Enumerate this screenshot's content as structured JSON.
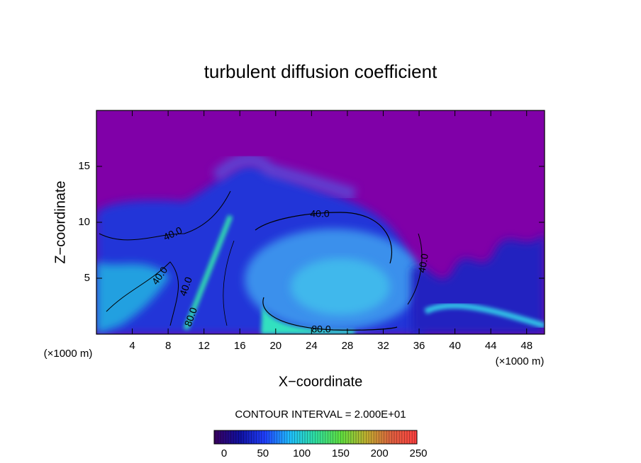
{
  "chart_data": {
    "type": "contour",
    "title": "turbulent diffusion coefficient",
    "x_label": "X−coordinate",
    "y_label": "Z−coordinate",
    "x_unit_label": "(×1000 m)",
    "y_unit_label": "(×1000 m)",
    "xlim": [
      0,
      50
    ],
    "xticks": [
      4,
      8,
      12,
      16,
      20,
      24,
      28,
      32,
      36,
      40,
      44,
      48
    ],
    "ylim": [
      0,
      20
    ],
    "yticks": [
      5,
      10,
      15
    ],
    "background_color": "#8000a8",
    "contour_interval_label": "CONTOUR INTERVAL = 2.000E+01",
    "contour_labels": [
      "40.0",
      "40.0",
      "40.0",
      "40.0",
      "40.0",
      "80.0",
      "80.0"
    ],
    "colorbar": {
      "lim": [
        0,
        250
      ],
      "ticks": [
        0,
        50,
        100,
        150,
        200,
        250
      ],
      "colors": [
        "#3a0060",
        "#1010a0",
        "#2040ff",
        "#20c0ff",
        "#30e0a0",
        "#60e040",
        "#c0b030",
        "#e06040",
        "#ff4040"
      ]
    }
  }
}
